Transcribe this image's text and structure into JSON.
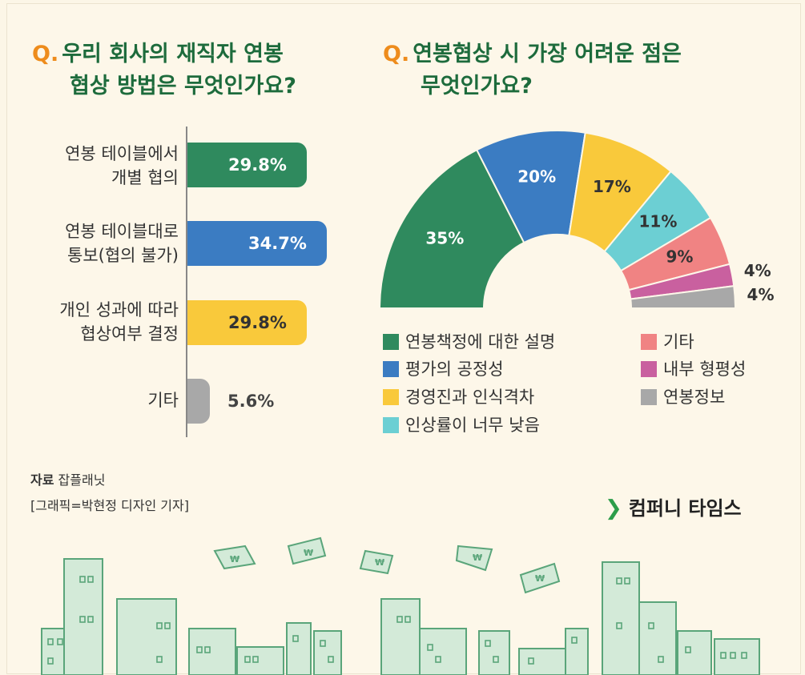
{
  "left_title": {
    "q": "Q.",
    "line1": "우리 회사의 재직자 연봉",
    "line2": "협상 방법은 무엇인가요?"
  },
  "right_title": {
    "q": "Q.",
    "line1": "연봉협상 시 가장 어려운 점은",
    "line2": "무엇인가요?"
  },
  "chart_data": [
    {
      "type": "bar",
      "orientation": "horizontal",
      "title": "우리 회사의 재직자 연봉 협상 방법은 무엇인가요?",
      "categories": [
        {
          "line1": "연봉 테이블에서",
          "line2": "개별 협의"
        },
        {
          "line1": "연봉 테이블대로",
          "line2": "통보(협의 불가)"
        },
        {
          "line1": "개인 성과에 따라",
          "line2": "협상여부 결정"
        },
        {
          "line1": "기타",
          "line2": ""
        }
      ],
      "values": [
        29.8,
        34.7,
        29.8,
        5.6
      ],
      "labels": [
        "29.8%",
        "34.7%",
        "29.8%",
        "5.6%"
      ],
      "colors": [
        "#2f8a5e",
        "#3b7cc2",
        "#f9c93b",
        "#a8a8a8"
      ],
      "xlim": [
        0,
        34.7
      ]
    },
    {
      "type": "pie",
      "subtype": "semicircle-donut",
      "title": "연봉협상 시 가장 어려운 점은 무엇인가요?",
      "slices": [
        {
          "name": "연봉책정에 대한 설명",
          "value": 35,
          "label": "35%",
          "color": "#2f8a5e"
        },
        {
          "name": "평가의 공정성",
          "value": 20,
          "label": "20%",
          "color": "#3b7cc2"
        },
        {
          "name": "경영진과 인식격차",
          "value": 17,
          "label": "17%",
          "color": "#f9c93b"
        },
        {
          "name": "인상률이 너무 낮음",
          "value": 11,
          "label": "11%",
          "color": "#6ccfd3"
        },
        {
          "name": "기타",
          "value": 9,
          "label": "9%",
          "color": "#f08383"
        },
        {
          "name": "내부 형평성",
          "value": 4,
          "label": "4%",
          "color": "#c9609f"
        },
        {
          "name": "연봉정보",
          "value": 4,
          "label": "4%",
          "color": "#a8a8a8"
        }
      ]
    }
  ],
  "source": {
    "label": "자료",
    "name": "잡플래닛",
    "credit": "[그래픽=박현정 디자인 기자]"
  },
  "brand": {
    "name": "컴퍼니 타임스"
  }
}
